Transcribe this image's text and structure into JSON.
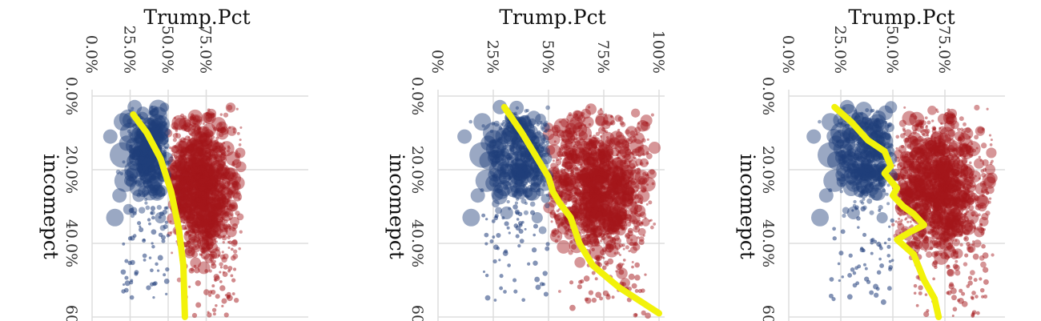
{
  "colors": {
    "clinton": "#1f3d7a",
    "trump": "#a3161a",
    "fit": "#f2f20a"
  },
  "chart_data": [
    {
      "type": "scatter",
      "title": "Trump.Pct",
      "xlabel": "Trump.Pct",
      "ylabel": "incomepct",
      "xlim": [
        0,
        1
      ],
      "ylim": [
        0,
        0.6
      ],
      "x_ticks": [
        0,
        0.25,
        0.5,
        0.75
      ],
      "x_tick_labels": [
        "0.0%",
        "25.0%",
        "50.0%",
        "75.0%"
      ],
      "y_ticks": [
        0,
        0.2,
        0.4,
        0.6
      ],
      "y_tick_labels": [
        "0.0%",
        "20.0%",
        "40.0%",
        "60."
      ],
      "grid": true,
      "fit_line": {
        "x": [
          0.27,
          0.36,
          0.45,
          0.52,
          0.57,
          0.6,
          0.61
        ],
        "y": [
          0.05,
          0.1,
          0.17,
          0.26,
          0.36,
          0.46,
          0.6
        ]
      }
    },
    {
      "type": "scatter",
      "title": "Trump.Pct",
      "xlabel": "Trump.Pct",
      "ylabel": "incomepct",
      "xlim": [
        0,
        1
      ],
      "ylim": [
        0,
        0.6
      ],
      "x_ticks": [
        0,
        0.25,
        0.5,
        0.75,
        1
      ],
      "x_tick_labels": [
        "0%",
        "25%",
        "50%",
        "75%",
        "100%"
      ],
      "y_ticks": [
        0,
        0.2,
        0.4,
        0.6
      ],
      "y_tick_labels": [
        "0.0%",
        "20.0%",
        "40.0%",
        "60."
      ],
      "grid": true,
      "fit_line": {
        "x": [
          0.3,
          0.38,
          0.45,
          0.5,
          0.52,
          0.55,
          0.6,
          0.64,
          0.7,
          0.82,
          1.0
        ],
        "y": [
          0.03,
          0.1,
          0.17,
          0.22,
          0.26,
          0.29,
          0.33,
          0.4,
          0.46,
          0.52,
          0.59
        ]
      }
    },
    {
      "type": "scatter",
      "title": "Trump.Pct",
      "xlabel": "Trump.Pct",
      "ylabel": "incomepct",
      "xlim": [
        0,
        1
      ],
      "ylim": [
        0,
        0.6
      ],
      "x_ticks": [
        0,
        0.25,
        0.5,
        0.75
      ],
      "x_tick_labels": [
        "0.0%",
        "25.0%",
        "50.0%",
        "75.0%"
      ],
      "y_ticks": [
        0,
        0.2,
        0.4,
        0.6
      ],
      "y_tick_labels": [
        "0.0%",
        "20.0%",
        "40.0%",
        "60."
      ],
      "grid": true,
      "fit_line": {
        "x": [
          0.22,
          0.3,
          0.38,
          0.46,
          0.49,
          0.46,
          0.52,
          0.5,
          0.55,
          0.6,
          0.65,
          0.58,
          0.52,
          0.6,
          0.65,
          0.7,
          0.72
        ],
        "y": [
          0.03,
          0.07,
          0.12,
          0.15,
          0.19,
          0.21,
          0.25,
          0.27,
          0.3,
          0.32,
          0.35,
          0.37,
          0.39,
          0.43,
          0.5,
          0.55,
          0.6
        ]
      }
    }
  ]
}
